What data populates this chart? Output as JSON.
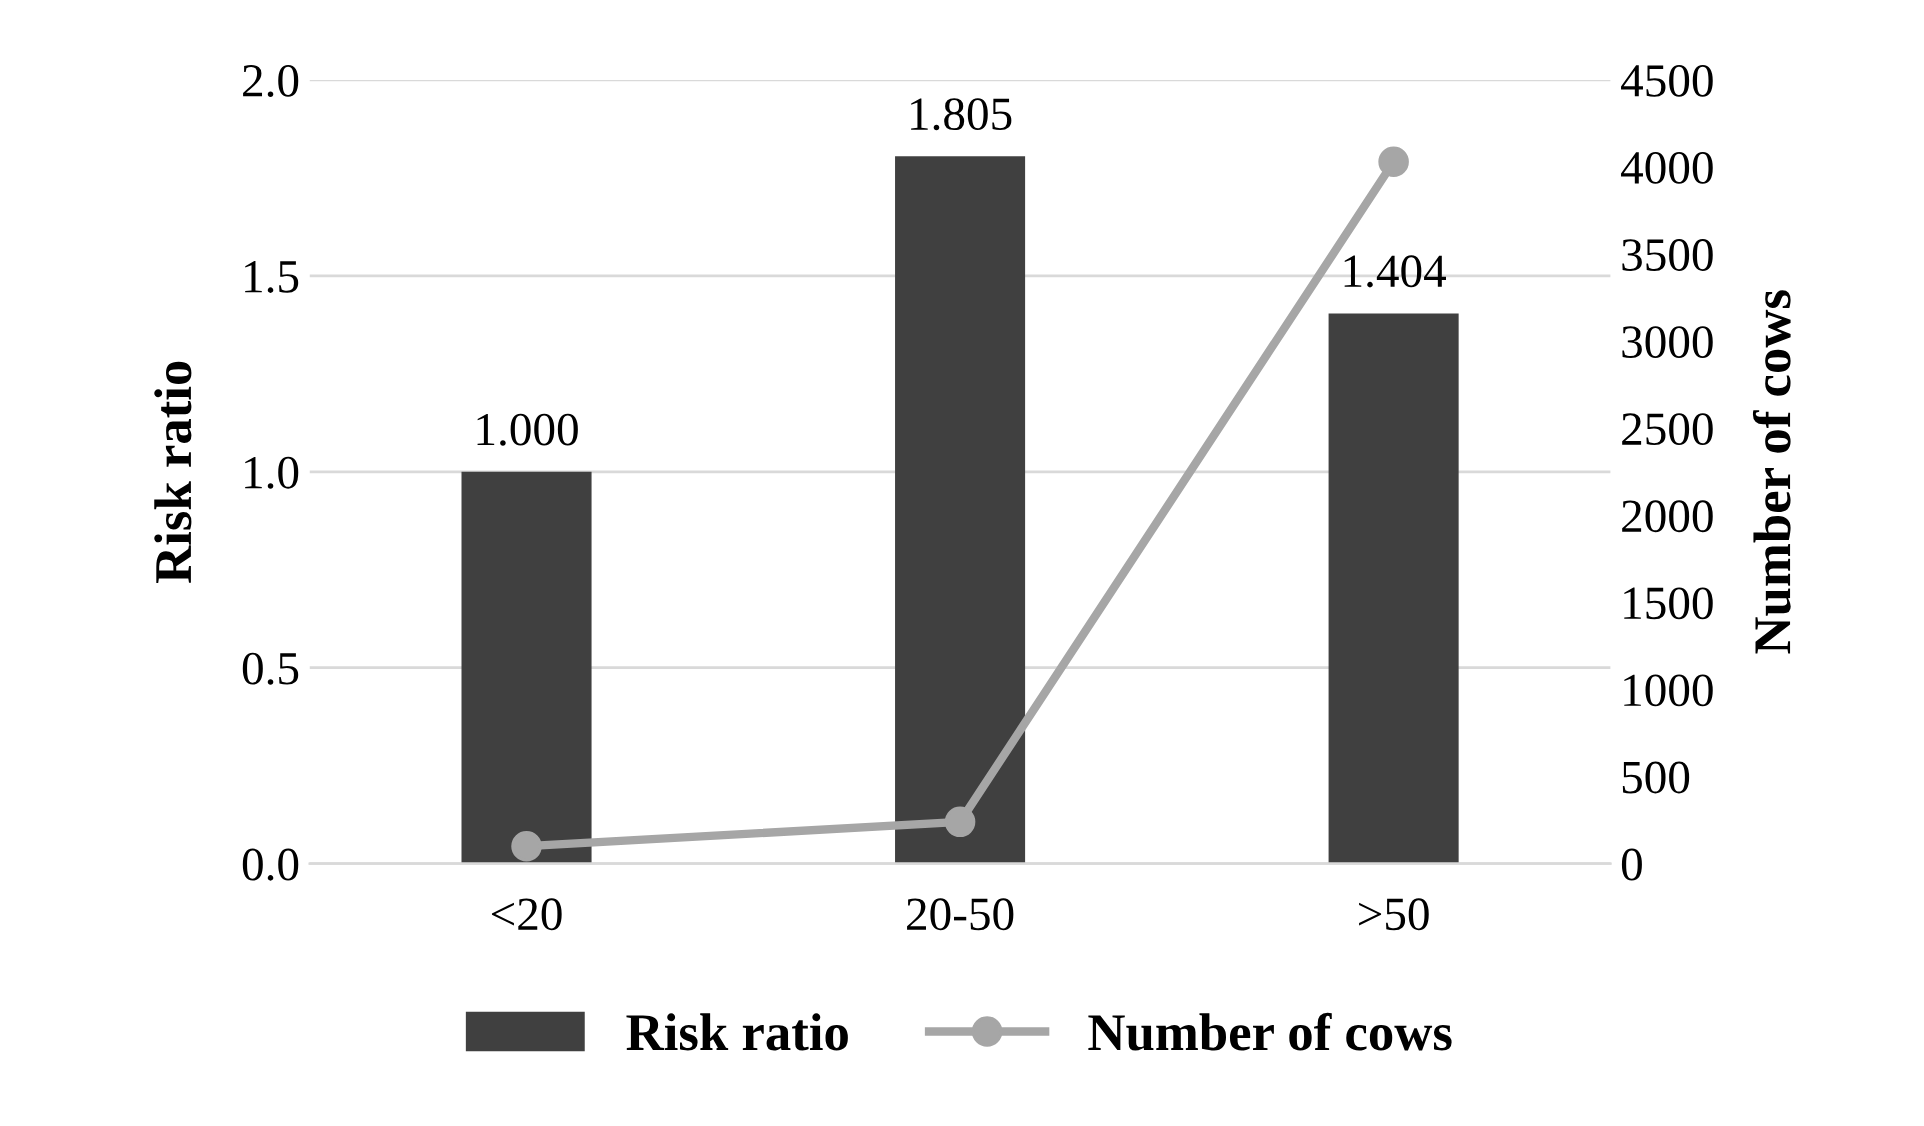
{
  "chart_data": {
    "type": "bar",
    "categories": [
      "<20",
      "20-50",
      ">50"
    ],
    "ylabel": "Risk ratio",
    "y2label": "Number of cows",
    "series": [
      {
        "name": "Risk ratio",
        "color": "#404040",
        "values": [
          1.0,
          1.805,
          1.404
        ],
        "value_labels": [
          "1.000",
          "1.805",
          "1.404"
        ]
      },
      {
        "name": "Number of cows",
        "type": "line",
        "axis": "y2",
        "color": "#a6a6a6",
        "values": [
          100,
          240,
          4030
        ],
        "marker": "circle"
      }
    ],
    "ylim": [
      0,
      2.0
    ],
    "yticks": [
      {
        "value": 0,
        "label": "0.0"
      },
      {
        "value": 0.5,
        "label": "0.5"
      },
      {
        "value": 1.0,
        "label": "1.0"
      },
      {
        "value": 1.5,
        "label": "1.5"
      },
      {
        "value": 2.0,
        "label": "2.0"
      }
    ],
    "y2lim": [
      0,
      4500
    ],
    "y2ticks": [
      0,
      500,
      1000,
      1500,
      2000,
      2500,
      3000,
      3500,
      4000,
      4500
    ],
    "grid": "y",
    "legend": "bottom"
  }
}
